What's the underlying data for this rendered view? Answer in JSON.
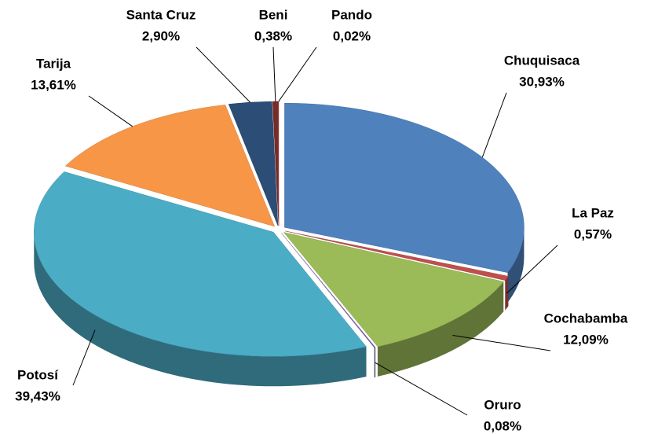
{
  "chart_data": {
    "type": "pie",
    "categories": [
      "Chuquisaca",
      "La Paz",
      "Cochabamba",
      "Oruro",
      "Potosí",
      "Tarija",
      "Santa Cruz",
      "Beni",
      "Pando"
    ],
    "values": [
      30.93,
      0.57,
      12.09,
      0.08,
      39.43,
      13.61,
      2.9,
      0.38,
      0.02
    ],
    "value_labels": [
      "30,93%",
      "0,57%",
      "12,09%",
      "0,08%",
      "39,43%",
      "13,61%",
      "2,90%",
      "0,38%",
      "0,02%"
    ],
    "colors": [
      "#4f81bd",
      "#c0504d",
      "#9bbb59",
      "#8064a2",
      "#4bacc6",
      "#f79646",
      "#2c4d75",
      "#772c2a",
      "#c0504d"
    ]
  }
}
